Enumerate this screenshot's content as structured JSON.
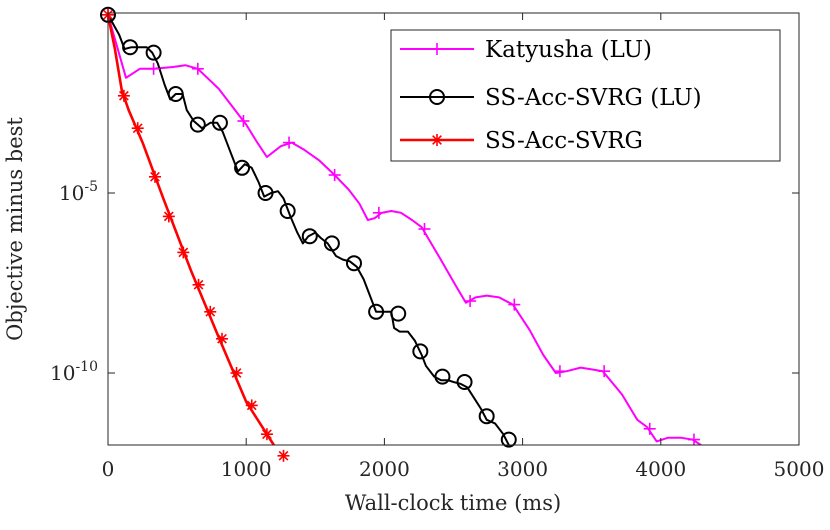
{
  "chart_data": {
    "type": "line",
    "title": "",
    "xlabel": "Wall-clock time (ms)",
    "ylabel": "Objective minus best",
    "xlim": [
      0,
      5000
    ],
    "ylim_log10": [
      -12,
      0
    ],
    "yscale": "log",
    "x_ticks": [
      0,
      1000,
      2000,
      3000,
      4000,
      5000
    ],
    "x_tick_labels": [
      "0",
      "1000",
      "2000",
      "3000",
      "4000",
      "5000"
    ],
    "y_ticks_log10": [
      -5,
      -10
    ],
    "y_tick_labels": [
      {
        "base": "10",
        "exp": "-5"
      },
      {
        "base": "10",
        "exp": "-10"
      }
    ],
    "legend_position": "top-right",
    "series": [
      {
        "name": "Katyusha (LU)",
        "color": "#ff00ff",
        "marker": "plus",
        "line_points": [
          [
            0,
            -0.05
          ],
          [
            130,
            -1.8
          ],
          [
            230,
            -1.55
          ],
          [
            330,
            -1.55
          ],
          [
            470,
            -1.5
          ],
          [
            560,
            -1.45
          ],
          [
            650,
            -1.55
          ],
          [
            800,
            -2.1
          ],
          [
            900,
            -2.6
          ],
          [
            1000,
            -3.1
          ],
          [
            1080,
            -3.6
          ],
          [
            1150,
            -4.0
          ],
          [
            1250,
            -3.7
          ],
          [
            1330,
            -3.6
          ],
          [
            1420,
            -3.8
          ],
          [
            1530,
            -4.1
          ],
          [
            1640,
            -4.5
          ],
          [
            1740,
            -4.9
          ],
          [
            1820,
            -5.3
          ],
          [
            1880,
            -5.75
          ],
          [
            1930,
            -5.7
          ],
          [
            1980,
            -5.55
          ],
          [
            2050,
            -5.5
          ],
          [
            2120,
            -5.55
          ],
          [
            2200,
            -5.75
          ],
          [
            2270,
            -5.95
          ],
          [
            2400,
            -6.8
          ],
          [
            2520,
            -7.6
          ],
          [
            2590,
            -8.05
          ],
          [
            2660,
            -7.9
          ],
          [
            2740,
            -7.85
          ],
          [
            2830,
            -7.9
          ],
          [
            2930,
            -8.1
          ],
          [
            3050,
            -8.8
          ],
          [
            3150,
            -9.5
          ],
          [
            3240,
            -10.0
          ],
          [
            3320,
            -9.95
          ],
          [
            3420,
            -9.85
          ],
          [
            3500,
            -9.9
          ],
          [
            3580,
            -9.95
          ],
          [
            3720,
            -10.6
          ],
          [
            3830,
            -11.3
          ],
          [
            3900,
            -11.5
          ],
          [
            3970,
            -11.9
          ],
          [
            4050,
            -11.8
          ],
          [
            4150,
            -11.8
          ],
          [
            4230,
            -11.85
          ],
          [
            4330,
            -12.1
          ],
          [
            4450,
            -12.6
          ]
        ],
        "marker_points": [
          [
            0,
            -0.05
          ],
          [
            330,
            -1.55
          ],
          [
            650,
            -1.55
          ],
          [
            980,
            -3.0
          ],
          [
            1310,
            -3.6
          ],
          [
            1640,
            -4.5
          ],
          [
            1960,
            -5.55
          ],
          [
            2290,
            -6.0
          ],
          [
            2620,
            -8.0
          ],
          [
            2940,
            -8.1
          ],
          [
            3270,
            -9.95
          ],
          [
            3590,
            -9.95
          ],
          [
            3920,
            -11.55
          ],
          [
            4240,
            -11.85
          ]
        ]
      },
      {
        "name": "SS-Acc-SVRG (LU)",
        "color": "#000000",
        "marker": "circle",
        "line_points": [
          [
            0,
            -0.05
          ],
          [
            80,
            -0.6
          ],
          [
            120,
            -1.0
          ],
          [
            170,
            -0.95
          ],
          [
            220,
            -0.95
          ],
          [
            280,
            -0.95
          ],
          [
            320,
            -1.1
          ],
          [
            360,
            -1.4
          ],
          [
            410,
            -2.0
          ],
          [
            450,
            -2.4
          ],
          [
            490,
            -2.25
          ],
          [
            540,
            -2.25
          ],
          [
            570,
            -2.7
          ],
          [
            620,
            -3.0
          ],
          [
            680,
            -3.2
          ],
          [
            740,
            -3.05
          ],
          [
            790,
            -3.05
          ],
          [
            830,
            -3.3
          ],
          [
            880,
            -3.8
          ],
          [
            940,
            -4.4
          ],
          [
            990,
            -4.2
          ],
          [
            1040,
            -4.3
          ],
          [
            1090,
            -4.7
          ],
          [
            1130,
            -5.1
          ],
          [
            1180,
            -5.0
          ],
          [
            1230,
            -4.95
          ],
          [
            1270,
            -5.15
          ],
          [
            1320,
            -5.65
          ],
          [
            1370,
            -6.1
          ],
          [
            1410,
            -6.4
          ],
          [
            1450,
            -6.2
          ],
          [
            1500,
            -6.1
          ],
          [
            1540,
            -6.25
          ],
          [
            1590,
            -6.4
          ],
          [
            1650,
            -6.75
          ],
          [
            1700,
            -6.85
          ],
          [
            1750,
            -6.9
          ],
          [
            1800,
            -7.05
          ],
          [
            1850,
            -7.4
          ],
          [
            1900,
            -7.9
          ],
          [
            1940,
            -8.3
          ],
          [
            1990,
            -8.3
          ],
          [
            2050,
            -8.3
          ],
          [
            2070,
            -8.75
          ],
          [
            2110,
            -8.85
          ],
          [
            2170,
            -8.85
          ],
          [
            2220,
            -9.1
          ],
          [
            2270,
            -9.5
          ],
          [
            2300,
            -9.8
          ],
          [
            2360,
            -10.1
          ],
          [
            2410,
            -10.2
          ],
          [
            2460,
            -10.2
          ],
          [
            2500,
            -10.25
          ],
          [
            2550,
            -10.3
          ],
          [
            2600,
            -10.4
          ],
          [
            2650,
            -10.7
          ],
          [
            2700,
            -11.0
          ],
          [
            2740,
            -11.3
          ],
          [
            2800,
            -11.4
          ],
          [
            2860,
            -11.7
          ],
          [
            2900,
            -12.0
          ],
          [
            2960,
            -12.5
          ]
        ],
        "marker_points": [
          [
            0,
            -0.05
          ],
          [
            160,
            -0.95
          ],
          [
            330,
            -1.1
          ],
          [
            490,
            -2.25
          ],
          [
            650,
            -3.1
          ],
          [
            810,
            -3.05
          ],
          [
            970,
            -4.3
          ],
          [
            1140,
            -5.0
          ],
          [
            1300,
            -5.5
          ],
          [
            1460,
            -6.2
          ],
          [
            1620,
            -6.4
          ],
          [
            1780,
            -6.95
          ],
          [
            1940,
            -8.3
          ],
          [
            2100,
            -8.35
          ],
          [
            2260,
            -9.4
          ],
          [
            2420,
            -10.1
          ],
          [
            2580,
            -10.25
          ],
          [
            2740,
            -11.2
          ],
          [
            2900,
            -11.85
          ]
        ]
      },
      {
        "name": "SS-Acc-SVRG",
        "color": "#ff0000",
        "marker": "asterisk",
        "line_points": [
          [
            0,
            -0.05
          ],
          [
            50,
            -1.0
          ],
          [
            100,
            -2.15
          ],
          [
            150,
            -2.7
          ],
          [
            250,
            -3.6
          ],
          [
            400,
            -5.15
          ],
          [
            600,
            -7.15
          ],
          [
            800,
            -9.0
          ],
          [
            1000,
            -10.8
          ],
          [
            1200,
            -12.0
          ],
          [
            1300,
            -12.4
          ],
          [
            1350,
            -12.6
          ]
        ],
        "marker_points": [
          [
            0,
            -0.05
          ],
          [
            115,
            -2.3
          ],
          [
            215,
            -3.2
          ],
          [
            340,
            -4.55
          ],
          [
            440,
            -5.65
          ],
          [
            545,
            -6.65
          ],
          [
            655,
            -7.55
          ],
          [
            740,
            -8.3
          ],
          [
            825,
            -9.05
          ],
          [
            930,
            -10.0
          ],
          [
            1040,
            -10.9
          ],
          [
            1150,
            -11.7
          ],
          [
            1270,
            -12.3
          ]
        ]
      }
    ]
  }
}
